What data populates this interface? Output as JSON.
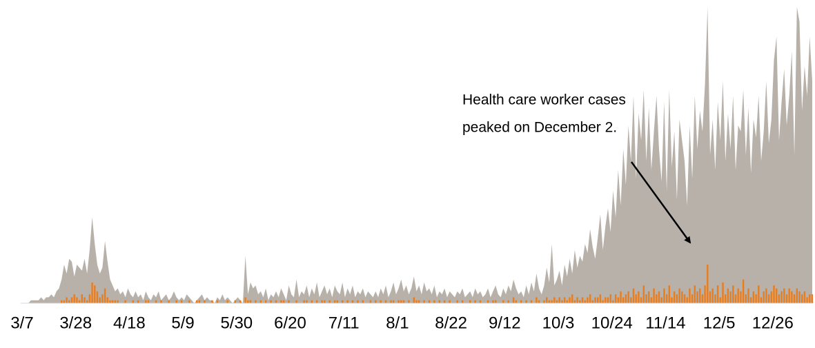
{
  "chart_data": {
    "type": "area",
    "annotation": [
      "Health care worker cases",
      "peaked on December 2."
    ],
    "categories": [
      "3/7",
      null,
      null,
      null,
      null,
      null,
      null,
      null,
      null,
      null,
      null,
      null,
      null,
      null,
      null,
      null,
      null,
      null,
      null,
      null,
      null,
      "3/28",
      null,
      null,
      null,
      null,
      null,
      null,
      null,
      null,
      null,
      null,
      null,
      null,
      null,
      null,
      null,
      null,
      null,
      null,
      null,
      null,
      "4/18",
      null,
      null,
      null,
      null,
      null,
      null,
      null,
      null,
      null,
      null,
      null,
      null,
      null,
      null,
      null,
      null,
      null,
      null,
      null,
      null,
      "5/9",
      null,
      null,
      null,
      null,
      null,
      null,
      null,
      null,
      null,
      null,
      null,
      null,
      null,
      null,
      null,
      null,
      null,
      null,
      null,
      null,
      "5/30",
      null,
      null,
      null,
      null,
      null,
      null,
      null,
      null,
      null,
      null,
      null,
      null,
      null,
      null,
      null,
      null,
      null,
      null,
      null,
      null,
      "6/20",
      null,
      null,
      null,
      null,
      null,
      null,
      null,
      null,
      null,
      null,
      null,
      null,
      null,
      null,
      null,
      null,
      null,
      null,
      null,
      null,
      "7/11",
      null,
      null,
      null,
      null,
      null,
      null,
      null,
      null,
      null,
      null,
      null,
      null,
      null,
      null,
      null,
      null,
      null,
      null,
      null,
      null,
      "8/1",
      null,
      null,
      null,
      null,
      null,
      null,
      null,
      null,
      null,
      null,
      null,
      null,
      null,
      null,
      null,
      null,
      null,
      null,
      null,
      null,
      "8/22",
      null,
      null,
      null,
      null,
      null,
      null,
      null,
      null,
      null,
      null,
      null,
      null,
      null,
      null,
      null,
      null,
      null,
      null,
      null,
      null,
      "9/12",
      null,
      null,
      null,
      null,
      null,
      null,
      null,
      null,
      null,
      null,
      null,
      null,
      null,
      null,
      null,
      null,
      null,
      null,
      null,
      null,
      "10/3",
      null,
      null,
      null,
      null,
      null,
      null,
      null,
      null,
      null,
      null,
      null,
      null,
      null,
      null,
      null,
      null,
      null,
      null,
      null,
      null,
      "10/24",
      null,
      null,
      null,
      null,
      null,
      null,
      null,
      null,
      null,
      null,
      null,
      null,
      null,
      null,
      null,
      null,
      null,
      null,
      null,
      null,
      "11/14",
      null,
      null,
      null,
      null,
      null,
      null,
      null,
      null,
      null,
      null,
      null,
      null,
      null,
      null,
      null,
      null,
      null,
      null,
      null,
      null,
      "12/5",
      null,
      null,
      null,
      null,
      null,
      null,
      null,
      null,
      null,
      null,
      null,
      null,
      null,
      null,
      null,
      null,
      null,
      null,
      null,
      null,
      "12/26",
      null,
      null,
      null,
      null,
      null,
      null,
      null,
      null,
      null,
      null,
      null,
      null,
      null,
      null,
      null,
      null
    ],
    "ylim": [
      0,
      100
    ],
    "series": [
      {
        "type": "area",
        "color": "#b7b1aa",
        "values": [
          0,
          0,
          0,
          0,
          1,
          1,
          1,
          1,
          2,
          1,
          2,
          2,
          3,
          2,
          4,
          5,
          8,
          13,
          10,
          15,
          14,
          9,
          13,
          12,
          11,
          15,
          10,
          18,
          29,
          20,
          13,
          10,
          12,
          21,
          14,
          8,
          6,
          4,
          5,
          3,
          4,
          2,
          5,
          3,
          2,
          4,
          2,
          3,
          1,
          4,
          2,
          1,
          3,
          2,
          4,
          1,
          2,
          3,
          1,
          2,
          4,
          2,
          1,
          2,
          1,
          3,
          2,
          1,
          0,
          1,
          2,
          3,
          1,
          2,
          1,
          1,
          0,
          2,
          1,
          3,
          1,
          2,
          1,
          0,
          1,
          2,
          1,
          0,
          16,
          3,
          7,
          5,
          6,
          3,
          4,
          2,
          5,
          1,
          3,
          2,
          4,
          2,
          5,
          3,
          1,
          6,
          3,
          2,
          8,
          2,
          4,
          3,
          6,
          2,
          5,
          3,
          7,
          2,
          4,
          6,
          3,
          5,
          2,
          6,
          4,
          3,
          7,
          2,
          5,
          3,
          6,
          2,
          4,
          3,
          5,
          2,
          4,
          3,
          2,
          4,
          2,
          5,
          3,
          6,
          2,
          4,
          7,
          3,
          5,
          8,
          4,
          6,
          3,
          5,
          9,
          4,
          6,
          3,
          7,
          4,
          5,
          3,
          6,
          2,
          4,
          3,
          5,
          2,
          4,
          3,
          2,
          4,
          3,
          5,
          2,
          3,
          4,
          2,
          5,
          3,
          4,
          2,
          3,
          5,
          2,
          4,
          6,
          3,
          2,
          5,
          3,
          6,
          4,
          8,
          5,
          3,
          4,
          2,
          6,
          3,
          7,
          4,
          10,
          5,
          3,
          6,
          12,
          7,
          20,
          6,
          8,
          11,
          6,
          13,
          9,
          15,
          10,
          18,
          12,
          16,
          14,
          20,
          17,
          25,
          19,
          15,
          22,
          30,
          18,
          26,
          32,
          24,
          38,
          29,
          45,
          33,
          52,
          40,
          60,
          48,
          70,
          42,
          64,
          55,
          72,
          48,
          66,
          45,
          58,
          70,
          52,
          41,
          68,
          38,
          72,
          46,
          58,
          35,
          62,
          55,
          48,
          33,
          60,
          42,
          70,
          52,
          65,
          58,
          74,
          100,
          50,
          62,
          45,
          68,
          55,
          75,
          48,
          64,
          52,
          70,
          45,
          60,
          58,
          72,
          50,
          66,
          44,
          62,
          56,
          70,
          48,
          58,
          75,
          54,
          62,
          82,
          90,
          55,
          68,
          79,
          60,
          70,
          85,
          50,
          100,
          95,
          65,
          80,
          70,
          90,
          75
        ]
      },
      {
        "type": "bar",
        "color": "#e87d1e",
        "values": [
          0,
          0,
          0,
          0,
          0,
          0,
          0,
          0,
          0,
          0,
          0,
          0,
          0,
          0,
          0,
          0,
          1,
          1,
          2,
          1,
          2,
          3,
          2,
          1,
          3,
          2,
          1,
          3,
          7,
          6,
          4,
          2,
          3,
          5,
          2,
          1,
          1,
          1,
          1,
          0,
          0,
          1,
          0,
          0,
          1,
          0,
          1,
          0,
          0,
          1,
          1,
          0,
          0,
          1,
          0,
          1,
          0,
          0,
          1,
          0,
          0,
          1,
          0,
          1,
          0,
          0,
          1,
          0,
          0,
          1,
          1,
          0,
          1,
          0,
          0,
          1,
          0,
          1,
          0,
          0,
          0,
          1,
          0,
          0,
          1,
          0,
          1,
          0,
          2,
          1,
          1,
          0,
          1,
          0,
          1,
          0,
          1,
          0,
          1,
          0,
          1,
          0,
          1,
          1,
          0,
          1,
          0,
          0,
          1,
          0,
          0,
          1,
          1,
          0,
          1,
          0,
          1,
          0,
          1,
          1,
          0,
          1,
          0,
          1,
          1,
          0,
          1,
          0,
          1,
          0,
          1,
          0,
          1,
          0,
          1,
          0,
          0,
          1,
          0,
          1,
          0,
          1,
          0,
          1,
          0,
          1,
          1,
          0,
          1,
          1,
          1,
          0,
          1,
          0,
          2,
          1,
          1,
          0,
          1,
          0,
          1,
          0,
          1,
          0,
          1,
          0,
          1,
          0,
          1,
          0,
          0,
          1,
          0,
          1,
          0,
          0,
          1,
          0,
          1,
          0,
          1,
          0,
          0,
          1,
          0,
          1,
          1,
          0,
          0,
          1,
          0,
          1,
          0,
          2,
          1,
          0,
          1,
          0,
          1,
          0,
          1,
          0,
          2,
          1,
          0,
          1,
          2,
          1,
          1,
          2,
          1,
          2,
          1,
          2,
          1,
          2,
          3,
          1,
          2,
          1,
          2,
          1,
          2,
          3,
          1,
          2,
          2,
          3,
          1,
          2,
          2,
          3,
          1,
          3,
          2,
          4,
          2,
          3,
          4,
          2,
          5,
          3,
          4,
          2,
          6,
          3,
          4,
          2,
          5,
          3,
          4,
          2,
          5,
          3,
          6,
          2,
          4,
          3,
          5,
          4,
          3,
          2,
          5,
          3,
          6,
          4,
          5,
          3,
          6,
          13,
          4,
          5,
          3,
          6,
          2,
          7,
          3,
          5,
          4,
          6,
          3,
          5,
          4,
          8,
          3,
          5,
          2,
          4,
          3,
          6,
          2,
          4,
          5,
          3,
          4,
          6,
          5,
          3,
          4,
          5,
          3,
          5,
          4,
          3,
          5,
          4,
          3,
          4,
          2,
          3,
          3
        ]
      }
    ]
  }
}
